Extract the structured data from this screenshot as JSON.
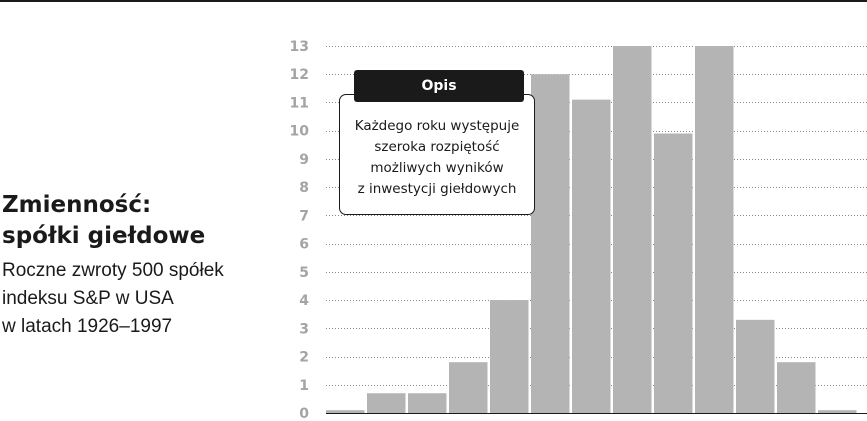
{
  "header_title_lines": [
    "Zmienność:",
    "spółki giełdowe"
  ],
  "header_subtitle_lines": [
    "Roczne zwroty 500 spółek",
    "indeksu S&P w USA",
    "w latach 1926–1997"
  ],
  "callout": {
    "title": "Opis",
    "lines": [
      "Każdego roku występuje",
      "szeroka rozpiętość",
      "możliwych wyników",
      "z inwestycji giełdowych"
    ]
  },
  "chart_data": {
    "type": "bar",
    "title": "",
    "xlabel": "",
    "ylabel": "",
    "ylim": [
      0,
      13
    ],
    "yticks": [
      0,
      1,
      2,
      3,
      4,
      5,
      6,
      7,
      8,
      9,
      10,
      11,
      12,
      13
    ],
    "grid": "horizontal dotted",
    "values": [
      0.1,
      0.7,
      0.7,
      1.8,
      4.0,
      12.0,
      11.1,
      13.0,
      9.9,
      13.0,
      3.3,
      1.8,
      0.1
    ],
    "colors": {
      "bar": "#b4b4b4",
      "tick": "#a4a4a4",
      "grid": "#8a8a8a",
      "ink": "#1a1a1a"
    }
  }
}
